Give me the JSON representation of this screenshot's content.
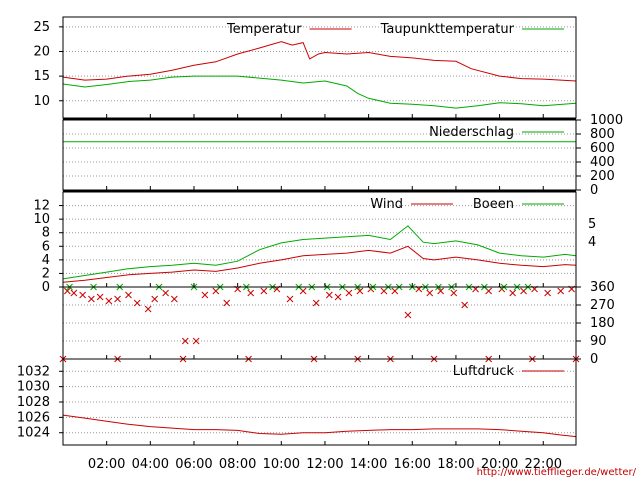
{
  "footer_url": "http://www.tiefflieger.de/wetter/",
  "colors": {
    "red": "#cc0000",
    "green": "#00aa00",
    "grid": "#999999"
  },
  "time_axis": {
    "labels": [
      "02:00",
      "04:00",
      "06:00",
      "08:00",
      "10:00",
      "12:00",
      "14:00",
      "16:00",
      "18:00",
      "20:00",
      "22:00"
    ],
    "hours": [
      2,
      4,
      6,
      8,
      10,
      12,
      14,
      16,
      18,
      20,
      22
    ],
    "range_hours": [
      0,
      23.5
    ]
  },
  "chart_data": [
    {
      "type": "line",
      "ylim": [
        6.5,
        27
      ],
      "yticks": [
        10,
        15,
        20,
        25
      ],
      "series": [
        {
          "name": "Temperatur",
          "color": "red",
          "points": [
            [
              0,
              14.8
            ],
            [
              1,
              14.2
            ],
            [
              2,
              14.4
            ],
            [
              3,
              15.0
            ],
            [
              4,
              15.4
            ],
            [
              5,
              16.2
            ],
            [
              6,
              17.2
            ],
            [
              7,
              17.9
            ],
            [
              8,
              19.5
            ],
            [
              9,
              20.7
            ],
            [
              10,
              22.0
            ],
            [
              10.5,
              21.3
            ],
            [
              11,
              21.8
            ],
            [
              11.3,
              18.5
            ],
            [
              11.7,
              19.5
            ],
            [
              12,
              19.8
            ],
            [
              13,
              19.5
            ],
            [
              14,
              19.8
            ],
            [
              15,
              19.0
            ],
            [
              16,
              18.7
            ],
            [
              17,
              18.2
            ],
            [
              18,
              18.0
            ],
            [
              18.7,
              16.5
            ],
            [
              20,
              15.0
            ],
            [
              21,
              14.5
            ],
            [
              22,
              14.4
            ],
            [
              23.5,
              14.0
            ]
          ]
        },
        {
          "name": "Taupunkttemperatur",
          "color": "green",
          "points": [
            [
              0,
              13.4
            ],
            [
              1,
              12.8
            ],
            [
              2,
              13.3
            ],
            [
              3,
              13.9
            ],
            [
              4,
              14.2
            ],
            [
              5,
              14.8
            ],
            [
              6,
              15.0
            ],
            [
              7,
              15.0
            ],
            [
              8,
              15.0
            ],
            [
              9,
              14.6
            ],
            [
              10,
              14.2
            ],
            [
              11,
              13.6
            ],
            [
              12,
              14.0
            ],
            [
              13,
              13.0
            ],
            [
              13.5,
              11.5
            ],
            [
              14,
              10.5
            ],
            [
              15,
              9.5
            ],
            [
              16,
              9.3
            ],
            [
              17,
              9.0
            ],
            [
              18,
              8.5
            ],
            [
              19,
              9.0
            ],
            [
              20,
              9.6
            ],
            [
              21,
              9.4
            ],
            [
              22,
              9.0
            ],
            [
              23.5,
              9.5
            ]
          ]
        }
      ]
    },
    {
      "type": "line",
      "ylim": [
        0,
        1000
      ],
      "yticks": [
        0,
        200,
        400,
        600,
        800,
        1000
      ],
      "series": [
        {
          "name": "Niederschlag",
          "color": "green",
          "points": [
            [
              0,
              690
            ],
            [
              23.5,
              690
            ]
          ]
        }
      ]
    },
    {
      "type": "line",
      "ylim": [
        0,
        14
      ],
      "yticks": [
        0,
        2,
        4,
        6,
        8,
        10,
        12
      ],
      "right_ticks": [
        "4",
        "5"
      ],
      "series": [
        {
          "name": "Wind",
          "color": "red",
          "points": [
            [
              0,
              0.7
            ],
            [
              1,
              1.0
            ],
            [
              2,
              1.4
            ],
            [
              3,
              1.8
            ],
            [
              4,
              2.0
            ],
            [
              5,
              2.2
            ],
            [
              6,
              2.5
            ],
            [
              7,
              2.3
            ],
            [
              8,
              2.8
            ],
            [
              9,
              3.5
            ],
            [
              10,
              4.0
            ],
            [
              11,
              4.6
            ],
            [
              12,
              4.8
            ],
            [
              13,
              5.0
            ],
            [
              14,
              5.4
            ],
            [
              15,
              5.0
            ],
            [
              15.8,
              6.0
            ],
            [
              16.5,
              4.2
            ],
            [
              17,
              4.0
            ],
            [
              18,
              4.4
            ],
            [
              19,
              4.0
            ],
            [
              20,
              3.5
            ],
            [
              21,
              3.2
            ],
            [
              22,
              3.0
            ],
            [
              23,
              3.3
            ],
            [
              23.5,
              3.2
            ]
          ]
        },
        {
          "name": "Boeen",
          "color": "green",
          "points": [
            [
              0,
              1.2
            ],
            [
              1,
              1.7
            ],
            [
              2,
              2.2
            ],
            [
              3,
              2.7
            ],
            [
              4,
              3.0
            ],
            [
              5,
              3.2
            ],
            [
              6,
              3.5
            ],
            [
              7,
              3.2
            ],
            [
              8,
              3.8
            ],
            [
              9,
              5.5
            ],
            [
              10,
              6.5
            ],
            [
              11,
              7.0
            ],
            [
              12,
              7.2
            ],
            [
              13,
              7.4
            ],
            [
              14,
              7.6
            ],
            [
              15,
              7.0
            ],
            [
              15.8,
              9.0
            ],
            [
              16.5,
              6.6
            ],
            [
              17,
              6.4
            ],
            [
              18,
              6.8
            ],
            [
              19,
              6.2
            ],
            [
              20,
              5.0
            ],
            [
              21,
              4.6
            ],
            [
              22,
              4.4
            ],
            [
              23,
              4.8
            ],
            [
              23.5,
              4.6
            ]
          ]
        }
      ]
    },
    {
      "type": "scatter",
      "ylim": [
        0,
        360
      ],
      "yticks": [
        0,
        90,
        180,
        270,
        360
      ],
      "series": [
        {
          "name": "",
          "color": "red",
          "points": [
            [
              0.2,
              340
            ],
            [
              0.5,
              330
            ],
            [
              0.9,
              320
            ],
            [
              1.3,
              300
            ],
            [
              1.7,
              310
            ],
            [
              2.1,
              290
            ],
            [
              2.5,
              300
            ],
            [
              3.0,
              320
            ],
            [
              3.4,
              280
            ],
            [
              3.9,
              250
            ],
            [
              4.2,
              300
            ],
            [
              4.7,
              330
            ],
            [
              5.1,
              300
            ],
            [
              5.6,
              90
            ],
            [
              6.1,
              90
            ],
            [
              6.5,
              320
            ],
            [
              7.0,
              340
            ],
            [
              7.5,
              280
            ],
            [
              8.0,
              350
            ],
            [
              8.6,
              330
            ],
            [
              9.2,
              340
            ],
            [
              9.8,
              350
            ],
            [
              10.4,
              300
            ],
            [
              11.0,
              340
            ],
            [
              11.6,
              280
            ],
            [
              12.2,
              320
            ],
            [
              12.6,
              310
            ],
            [
              13.1,
              330
            ],
            [
              13.6,
              340
            ],
            [
              14.1,
              350
            ],
            [
              14.7,
              340
            ],
            [
              15.2,
              340
            ],
            [
              15.8,
              220
            ],
            [
              16.3,
              350
            ],
            [
              16.8,
              330
            ],
            [
              17.3,
              340
            ],
            [
              17.9,
              330
            ],
            [
              18.4,
              270
            ],
            [
              18.9,
              350
            ],
            [
              19.5,
              340
            ],
            [
              20.1,
              350
            ],
            [
              20.6,
              330
            ],
            [
              21.1,
              340
            ],
            [
              21.6,
              350
            ],
            [
              22.2,
              330
            ],
            [
              22.8,
              340
            ],
            [
              23.3,
              350
            ],
            [
              0,
              0
            ],
            [
              2.5,
              0
            ],
            [
              5.5,
              0
            ],
            [
              8.5,
              0
            ],
            [
              11.5,
              0
            ],
            [
              13.5,
              0
            ],
            [
              15.0,
              0
            ],
            [
              17.0,
              0
            ],
            [
              19.5,
              0
            ],
            [
              21.5,
              0
            ],
            [
              23.5,
              0
            ]
          ]
        },
        {
          "name": "",
          "color": "green",
          "points": [
            [
              0.3,
              360
            ],
            [
              1.4,
              360
            ],
            [
              2.6,
              360
            ],
            [
              4.4,
              360
            ],
            [
              6.0,
              360
            ],
            [
              7.2,
              360
            ],
            [
              8.4,
              360
            ],
            [
              9.6,
              360
            ],
            [
              10.8,
              360
            ],
            [
              11.4,
              360
            ],
            [
              12.1,
              360
            ],
            [
              12.8,
              360
            ],
            [
              13.5,
              360
            ],
            [
              14.2,
              360
            ],
            [
              14.9,
              360
            ],
            [
              15.4,
              360
            ],
            [
              16.0,
              360
            ],
            [
              16.6,
              360
            ],
            [
              17.2,
              360
            ],
            [
              17.8,
              360
            ],
            [
              18.6,
              360
            ],
            [
              19.3,
              360
            ],
            [
              20.2,
              360
            ],
            [
              20.8,
              360
            ],
            [
              21.3,
              360
            ]
          ]
        }
      ]
    },
    {
      "type": "line",
      "ylim": [
        1022.4,
        1033.6
      ],
      "yticks": [
        1024,
        1026,
        1028,
        1030,
        1032
      ],
      "series": [
        {
          "name": "Luftdruck",
          "color": "red",
          "points": [
            [
              0,
              1026.3
            ],
            [
              1,
              1025.9
            ],
            [
              2,
              1025.5
            ],
            [
              3,
              1025.1
            ],
            [
              4,
              1024.8
            ],
            [
              5,
              1024.6
            ],
            [
              6,
              1024.4
            ],
            [
              7,
              1024.4
            ],
            [
              8,
              1024.3
            ],
            [
              9,
              1023.9
            ],
            [
              10,
              1023.8
            ],
            [
              11,
              1024.0
            ],
            [
              12,
              1024.0
            ],
            [
              13,
              1024.2
            ],
            [
              14,
              1024.3
            ],
            [
              15,
              1024.4
            ],
            [
              16,
              1024.4
            ],
            [
              17,
              1024.5
            ],
            [
              18,
              1024.5
            ],
            [
              19,
              1024.5
            ],
            [
              20,
              1024.4
            ],
            [
              21,
              1024.2
            ],
            [
              22,
              1024.0
            ],
            [
              22.8,
              1023.7
            ],
            [
              23.5,
              1023.5
            ]
          ]
        }
      ]
    }
  ]
}
